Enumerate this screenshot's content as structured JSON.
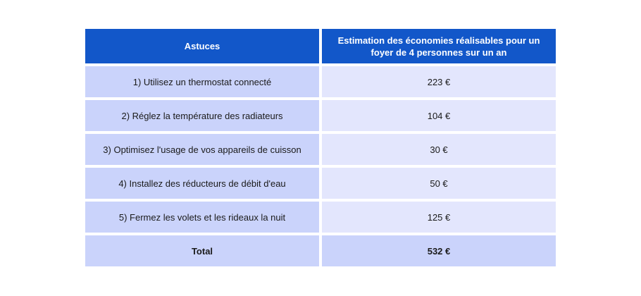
{
  "table": {
    "headers": {
      "col1": "Astuces",
      "col2": "Estimation des économies réalisables pour un foyer de 4 personnes sur un an"
    },
    "rows": [
      {
        "tip": "1) Utilisez un thermostat connecté",
        "saving": "223 €"
      },
      {
        "tip": "2) Réglez la température des radiateurs",
        "saving": "104 €"
      },
      {
        "tip": "3) Optimisez l'usage de vos appareils de cuisson",
        "saving": "30 €"
      },
      {
        "tip": "4) Installez des réducteurs de débit d'eau",
        "saving": "50 €"
      },
      {
        "tip": "5) Fermez les volets et les rideaux la nuit",
        "saving": "125 €"
      }
    ],
    "total": {
      "label": "Total",
      "value": "532 €"
    }
  },
  "colors": {
    "header_bg": "#1257c9",
    "col1_bg": "#cad3fb",
    "col2_bg": "#e3e6fd"
  }
}
